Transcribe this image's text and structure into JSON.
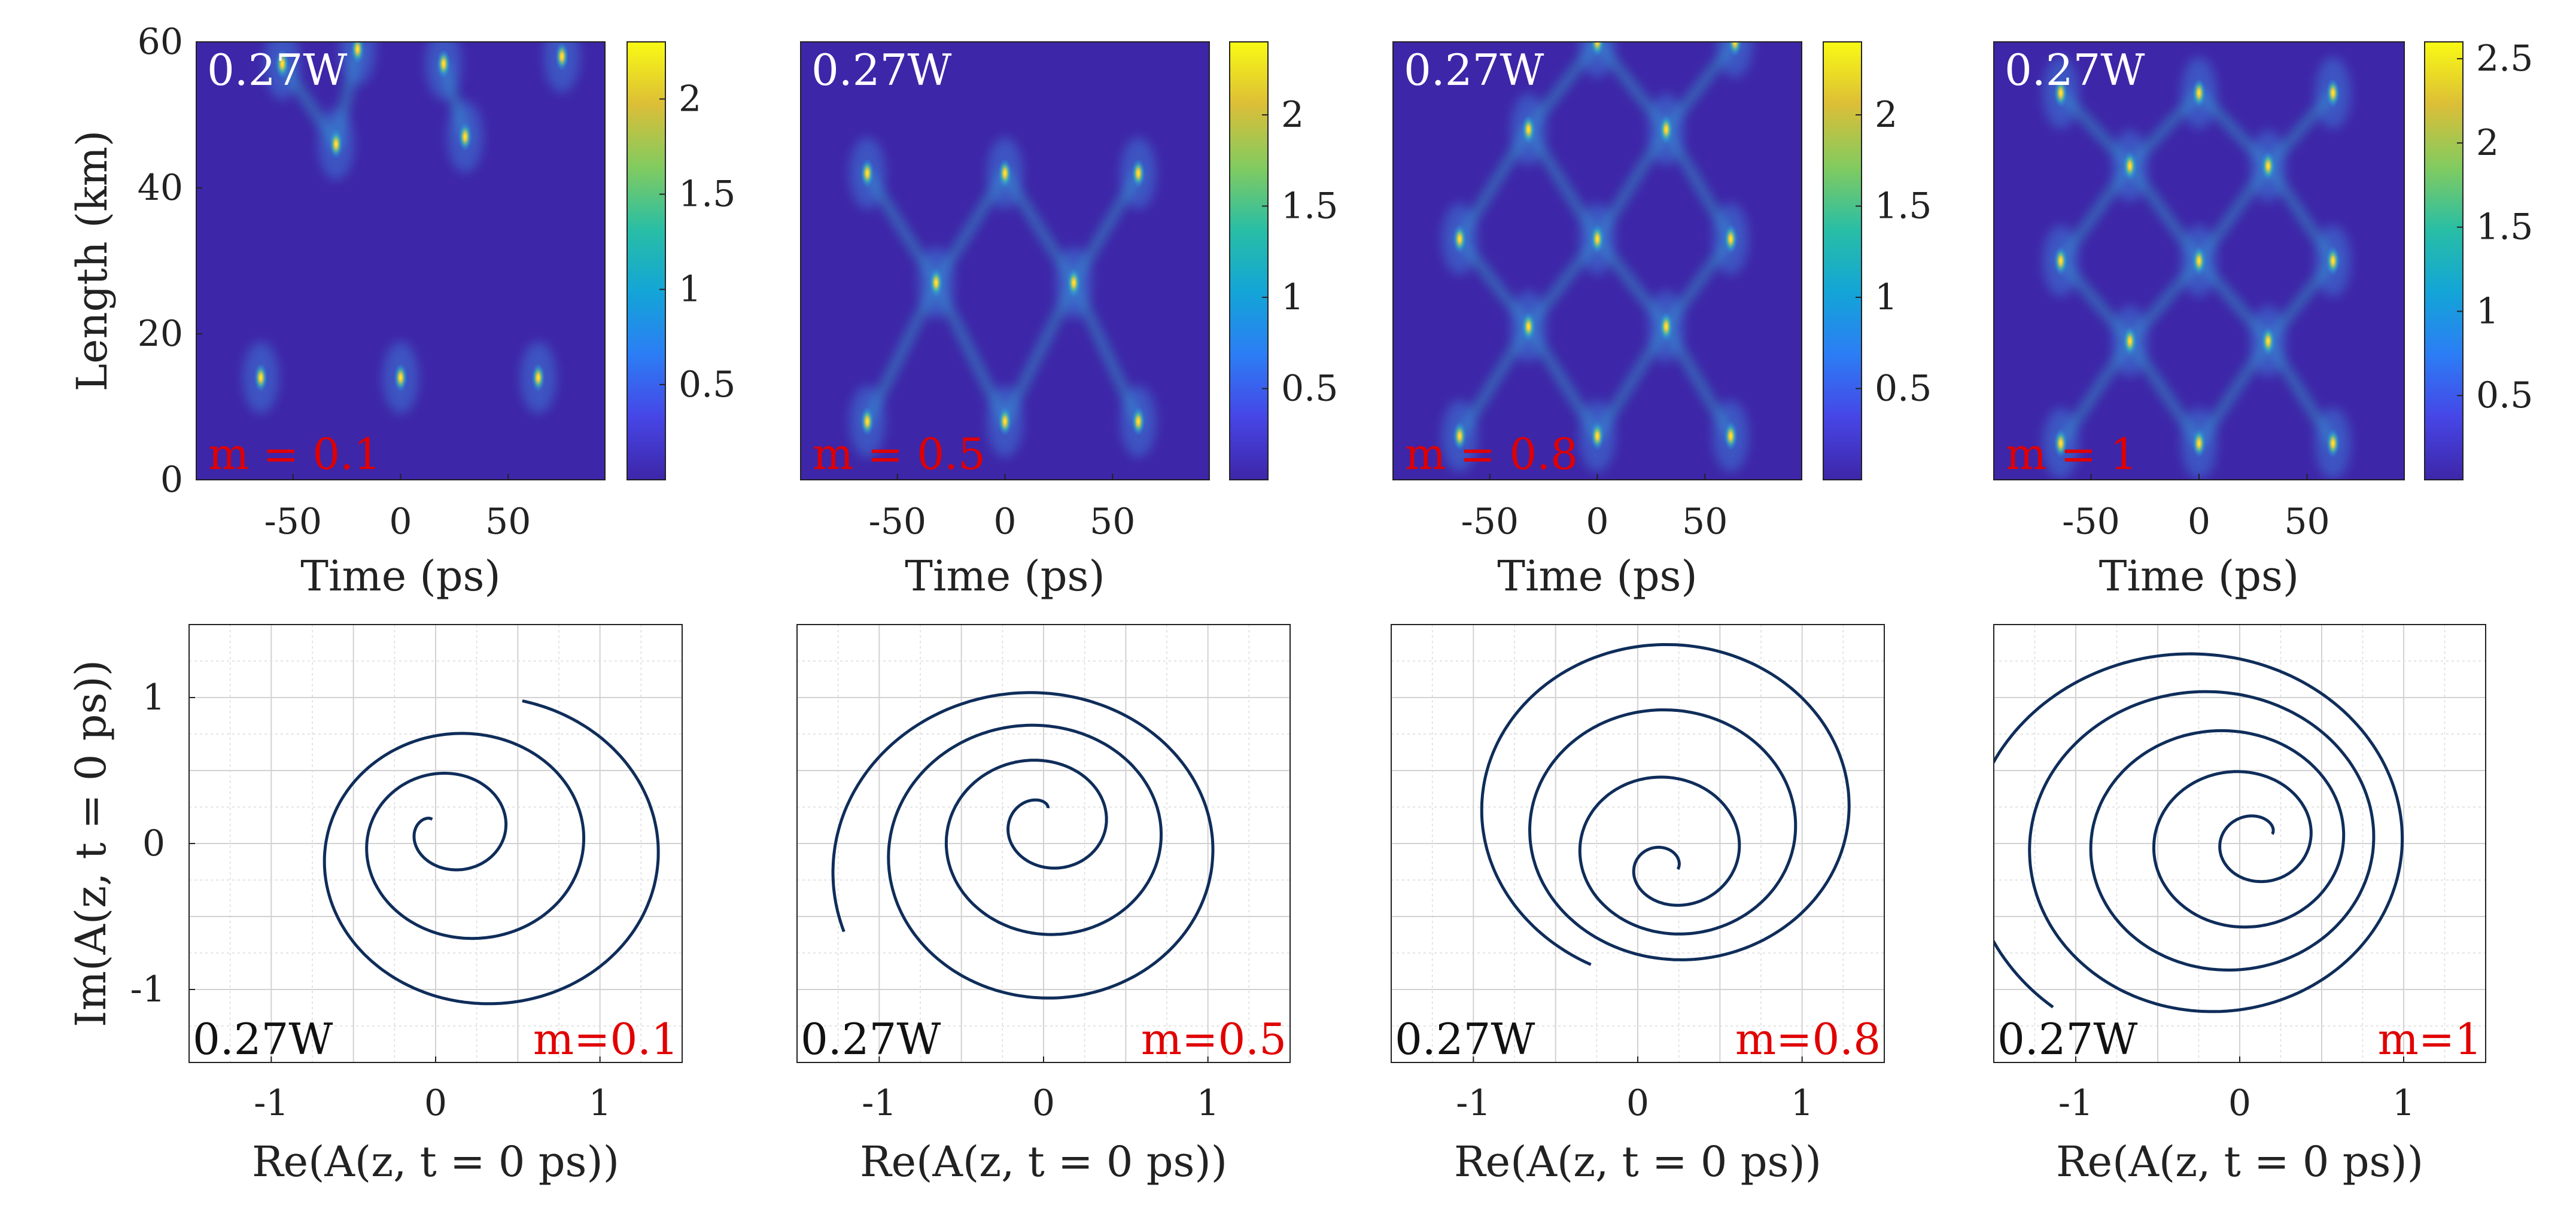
{
  "colors": {
    "background": "#ffffff",
    "heatmap_low": "#3e26a8",
    "trajectory": "#0f2d5a",
    "grid": "#cfcfcf",
    "m_label": "#e00000",
    "power_label_top": "#ffffff",
    "power_label_bottom": "#111111"
  },
  "chart_data": [
    {
      "type": "heatmap",
      "panel": "a1",
      "m_label": "m = 0.1",
      "power_label": "0.27W",
      "xlabel": "Time (ps)",
      "ylabel": "Length (km)",
      "xlim": [
        -95,
        95
      ],
      "ylim": [
        0,
        60
      ],
      "xticks": [
        "-50",
        "0",
        "50"
      ],
      "yticks": [
        "0",
        "20",
        "40",
        "60"
      ],
      "colorbar": {
        "ticks": [
          "0.5",
          "1",
          "1.5",
          "2"
        ],
        "max": 2.3
      },
      "peaks": [
        {
          "t": -65,
          "z": 14
        },
        {
          "t": 0,
          "z": 14
        },
        {
          "t": 64,
          "z": 14
        },
        {
          "t": -30,
          "z": 46
        },
        {
          "t": 30,
          "z": 47
        },
        {
          "t": -55,
          "z": 57
        },
        {
          "t": 20,
          "z": 57
        },
        {
          "t": -20,
          "z": 59
        },
        {
          "t": 75,
          "z": 58
        }
      ]
    },
    {
      "type": "heatmap",
      "panel": "a2",
      "m_label": "m = 0.5",
      "power_label": "0.27W",
      "xlabel": "Time (ps)",
      "ylabel": "",
      "xlim": [
        -95,
        95
      ],
      "ylim": [
        0,
        60
      ],
      "xticks": [
        "-50",
        "0",
        "50"
      ],
      "yticks": [],
      "colorbar": {
        "ticks": [
          "0.5",
          "1",
          "1.5",
          "2"
        ],
        "max": 2.4
      },
      "peaks": [
        {
          "t": -64,
          "z": 8
        },
        {
          "t": 0,
          "z": 8
        },
        {
          "t": 62,
          "z": 8
        },
        {
          "t": -32,
          "z": 27
        },
        {
          "t": 32,
          "z": 27
        },
        {
          "t": -64,
          "z": 42
        },
        {
          "t": 0,
          "z": 42
        },
        {
          "t": 62,
          "z": 42
        }
      ]
    },
    {
      "type": "heatmap",
      "panel": "a3",
      "m_label": "m = 0.8",
      "power_label": "0.27W",
      "xlabel": "Time (ps)",
      "ylabel": "",
      "xlim": [
        -95,
        95
      ],
      "ylim": [
        0,
        60
      ],
      "xticks": [
        "-50",
        "0",
        "50"
      ],
      "yticks": [],
      "colorbar": {
        "ticks": [
          "0.5",
          "1",
          "1.5",
          "2"
        ],
        "max": 2.4
      },
      "peaks": [
        {
          "t": -64,
          "z": 6
        },
        {
          "t": 0,
          "z": 6
        },
        {
          "t": 62,
          "z": 6
        },
        {
          "t": -32,
          "z": 21
        },
        {
          "t": 32,
          "z": 21
        },
        {
          "t": -64,
          "z": 33
        },
        {
          "t": 0,
          "z": 33
        },
        {
          "t": 62,
          "z": 33
        },
        {
          "t": -32,
          "z": 48
        },
        {
          "t": 32,
          "z": 48
        },
        {
          "t": 0,
          "z": 60
        },
        {
          "t": 64,
          "z": 60
        }
      ]
    },
    {
      "type": "heatmap",
      "panel": "a4",
      "m_label": "m = 1",
      "power_label": "0.27W",
      "xlabel": "Time (ps)",
      "ylabel": "",
      "xlim": [
        -95,
        95
      ],
      "ylim": [
        0,
        60
      ],
      "xticks": [
        "-50",
        "0",
        "50"
      ],
      "yticks": [],
      "colorbar": {
        "ticks": [
          "0.5",
          "1",
          "1.5",
          "2",
          "2.5"
        ],
        "max": 2.6
      },
      "peaks": [
        {
          "t": -64,
          "z": 5
        },
        {
          "t": 0,
          "z": 5
        },
        {
          "t": 62,
          "z": 5
        },
        {
          "t": -32,
          "z": 19
        },
        {
          "t": 32,
          "z": 19
        },
        {
          "t": -64,
          "z": 30
        },
        {
          "t": 0,
          "z": 30
        },
        {
          "t": 62,
          "z": 30
        },
        {
          "t": -32,
          "z": 43
        },
        {
          "t": 32,
          "z": 43
        },
        {
          "t": -64,
          "z": 53
        },
        {
          "t": 0,
          "z": 53
        },
        {
          "t": 62,
          "z": 53
        }
      ]
    },
    {
      "type": "line",
      "panel": "b1",
      "m_label": "m=0.1",
      "power_label": "0.27W",
      "xlabel": "Re(A(z, t = 0 ps))",
      "ylabel": "Im(A(z, t = 0 ps))",
      "xlim": [
        -1.5,
        1.5
      ],
      "ylim": [
        -1.5,
        1.5
      ],
      "xticks": [
        "-1",
        "0",
        "1"
      ],
      "yticks": [
        "-1",
        "0",
        "1"
      ],
      "trajectory": {
        "start_angle": 2.0,
        "turns": 2.9,
        "r_start": 0.05,
        "r_end": 1.15,
        "cx_start": 0.0,
        "cy_start": 0.12,
        "cx_end": 0.3,
        "cy_end": -0.15
      }
    },
    {
      "type": "line",
      "panel": "b2",
      "m_label": "m=0.5",
      "power_label": "0.27W",
      "xlabel": "Re(A(z, t = 0 ps))",
      "ylabel": "",
      "xlim": [
        -1.5,
        1.5
      ],
      "ylim": [
        -1.5,
        1.5
      ],
      "xticks": [
        "-1",
        "0",
        "1"
      ],
      "yticks": [],
      "trajectory": {
        "start_angle": 1.0,
        "turns": 3.4,
        "r_start": 0.05,
        "r_end": 1.25,
        "cx_start": 0.0,
        "cy_start": 0.2,
        "cx_end": -0.05,
        "cy_end": -0.15
      }
    },
    {
      "type": "line",
      "panel": "b3",
      "m_label": "m=0.8",
      "power_label": "0.27W",
      "xlabel": "Re(A(z, t = 0 ps))",
      "ylabel": "",
      "xlim": [
        -1.5,
        1.5
      ],
      "ylim": [
        -1.5,
        1.5
      ],
      "xticks": [
        "-1",
        "0",
        "1"
      ],
      "yticks": [],
      "trajectory": {
        "start_angle": 0.5,
        "turns": 3.6,
        "r_start": 0.05,
        "r_end": 1.25,
        "cx_start": 0.2,
        "cy_start": -0.2,
        "cx_end": 0.25,
        "cy_end": 0.3
      }
    },
    {
      "type": "line",
      "panel": "b4",
      "m_label": "m=1",
      "power_label": "0.27W",
      "xlabel": "Re(A(z, t = 0 ps))",
      "ylabel": "",
      "xlim": [
        -1.5,
        1.5
      ],
      "ylim": [
        -1.5,
        1.5
      ],
      "xticks": [
        "-1",
        "0",
        "1"
      ],
      "yticks": [],
      "trajectory": {
        "start_angle": 0.3,
        "turns": 4.6,
        "r_start": 0.05,
        "r_end": 1.4,
        "cx_start": 0.15,
        "cy_start": 0.05,
        "cx_end": -0.3,
        "cy_end": 0.0
      }
    }
  ]
}
